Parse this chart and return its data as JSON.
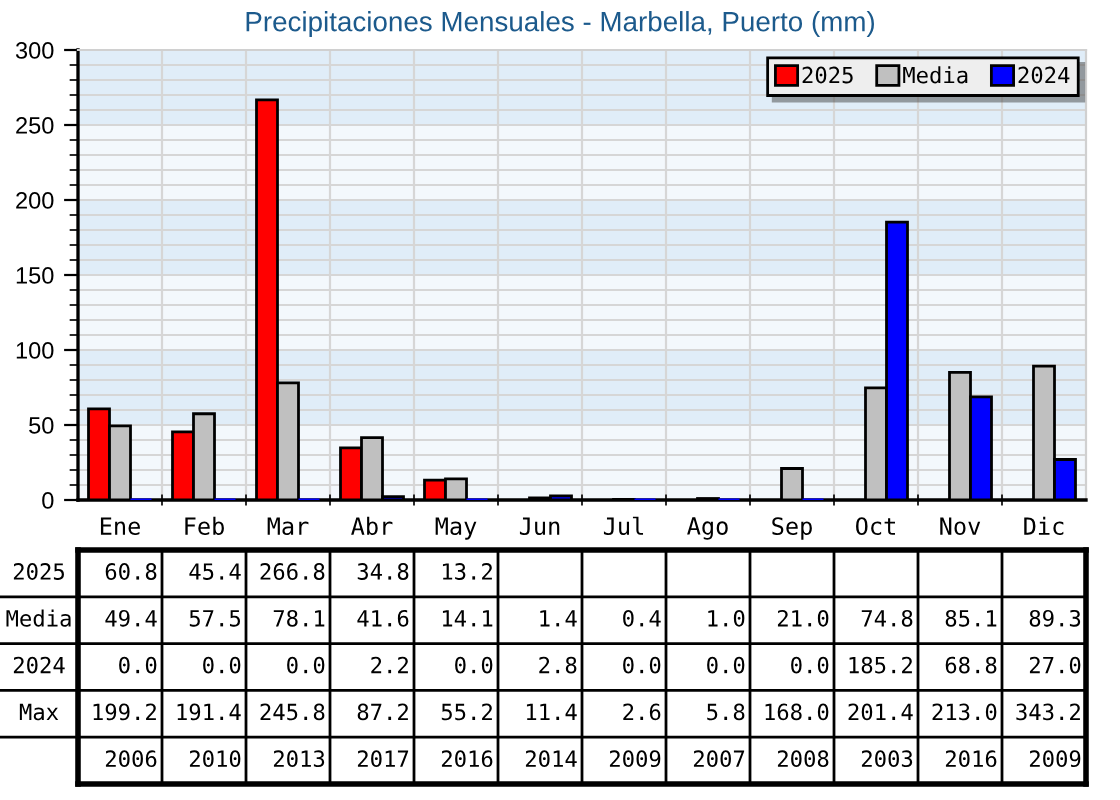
{
  "chart_data": {
    "type": "bar",
    "title": "Precipitaciones Mensuales - Marbella, Puerto (mm)",
    "categories": [
      "Ene",
      "Feb",
      "Mar",
      "Abr",
      "May",
      "Jun",
      "Jul",
      "Ago",
      "Sep",
      "Oct",
      "Nov",
      "Dic"
    ],
    "series": [
      {
        "name": "2025",
        "color": "#ff0000",
        "values": [
          60.8,
          45.4,
          266.8,
          34.8,
          13.2,
          null,
          null,
          null,
          null,
          null,
          null,
          null
        ],
        "value_labels": [
          "60.8",
          "45.4",
          "266.8",
          "34.8",
          "13.2",
          null,
          null,
          null,
          null,
          null,
          null,
          null
        ]
      },
      {
        "name": "Media",
        "color": "#c0c0c0",
        "values": [
          49.4,
          57.5,
          78.1,
          41.6,
          14.1,
          1.4,
          0.4,
          1.0,
          21.0,
          74.8,
          85.1,
          89.3
        ],
        "value_labels": [
          "49.4",
          "57.5",
          "78.1",
          "41.6",
          "14.1",
          "1.4",
          "0.4",
          "1.0",
          "21.0",
          "74.8",
          "85.1",
          "89.3"
        ]
      },
      {
        "name": "2024",
        "color": "#0000ff",
        "values": [
          0.0,
          0.0,
          0.0,
          2.2,
          0.0,
          2.8,
          0.0,
          0.0,
          0.0,
          185.2,
          68.8,
          27.0
        ],
        "value_labels": [
          "0.0",
          "0.0",
          "0.0",
          "2.2",
          "0.0",
          "2.8",
          "0.0",
          "0.0",
          "0.0",
          "185.2",
          "68.8",
          "27.0"
        ]
      }
    ],
    "ylim": [
      0,
      300
    ],
    "yticks": [
      0,
      {
        "value": 10,
        "label": null
      },
      {
        "value": 20,
        "label": null
      },
      {
        "value": 30,
        "label": null
      },
      {
        "value": 40,
        "label": null
      },
      50,
      {
        "value": 60,
        "label": null
      },
      {
        "value": 70,
        "label": null
      },
      {
        "value": 80,
        "label": null
      },
      {
        "value": 90,
        "label": null
      },
      100,
      {
        "value": 110,
        "label": null
      },
      {
        "value": 120,
        "label": null
      },
      {
        "value": 130,
        "label": null
      },
      {
        "value": 140,
        "label": null
      },
      150,
      {
        "value": 160,
        "label": null
      },
      {
        "value": 170,
        "label": null
      },
      {
        "value": 180,
        "label": null
      },
      {
        "value": 190,
        "label": null
      },
      200,
      {
        "value": 210,
        "label": null
      },
      {
        "value": 220,
        "label": null
      },
      {
        "value": 230,
        "label": null
      },
      {
        "value": 240,
        "label": null
      },
      250,
      {
        "value": 260,
        "label": null
      },
      {
        "value": 270,
        "label": null
      },
      {
        "value": 280,
        "label": null
      },
      {
        "value": 290,
        "label": null
      },
      300
    ],
    "grid": true,
    "legend": "top right",
    "bands": [
      {
        "axis": "y",
        "from": 50,
        "to": 100,
        "color": "#e0edf8"
      },
      {
        "axis": "y",
        "from": 150,
        "to": 200,
        "color": "#e0edf8"
      },
      {
        "axis": "y",
        "from": 250,
        "to": 300,
        "color": "#e0edf8"
      }
    ],
    "annotations": [
      "Max",
      "199.2",
      "191.4",
      "245.8",
      "87.2",
      "55.2",
      "11.4",
      "2.6",
      "5.8",
      "168.0",
      "201.4",
      "213.0",
      "343.2",
      "2006",
      "2010",
      "2013",
      "2017",
      "2016",
      "2014",
      "2009",
      "2007",
      "2008",
      "2003",
      "2016",
      "2009"
    ]
  }
}
